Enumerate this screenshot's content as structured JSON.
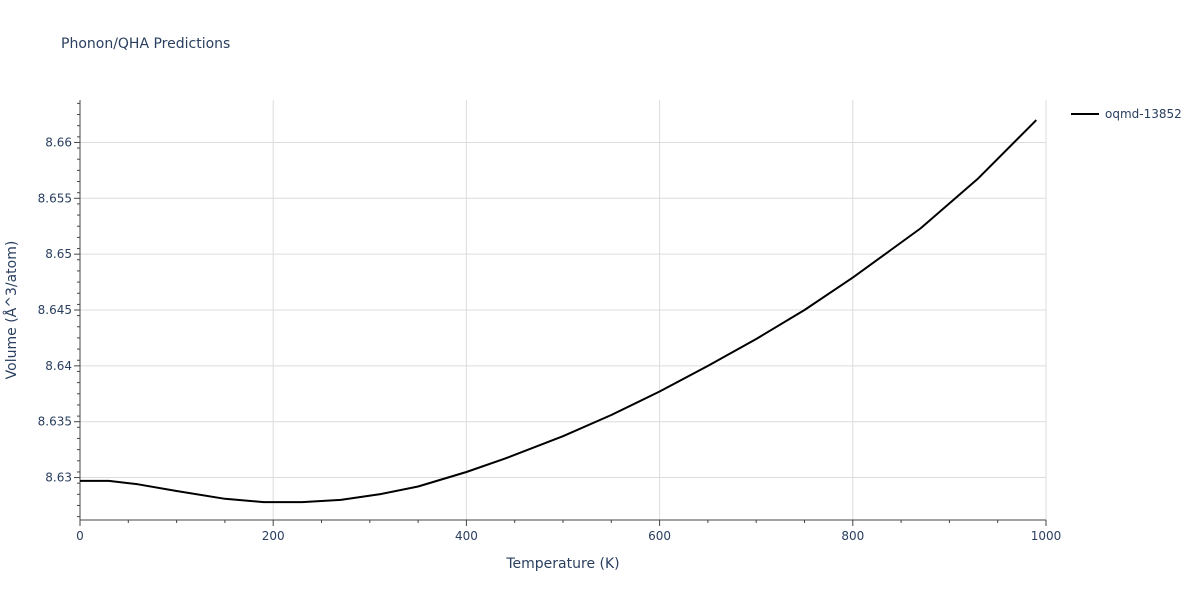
{
  "chart_data": {
    "type": "line",
    "title": "Phonon/QHA Predictions",
    "xlabel": "Temperature (K)",
    "ylabel": "Volume (Å^3/atom)",
    "xlim": [
      0,
      1000
    ],
    "ylim": [
      8.6262,
      8.6638
    ],
    "x_ticks": [
      0,
      200,
      400,
      600,
      800,
      1000
    ],
    "y_ticks": [
      8.63,
      8.635,
      8.64,
      8.645,
      8.65,
      8.655,
      8.66
    ],
    "grid": true,
    "legend_position": "top-right",
    "series": [
      {
        "name": "oqmd-13852",
        "color": "#000000",
        "x": [
          0,
          30,
          60,
          100,
          150,
          190,
          230,
          270,
          310,
          350,
          400,
          440,
          500,
          550,
          600,
          650,
          700,
          750,
          800,
          870,
          930,
          990
        ],
        "y": [
          8.6297,
          8.6297,
          8.6294,
          8.6288,
          8.6281,
          8.6278,
          8.6278,
          8.628,
          8.6285,
          8.6292,
          8.6305,
          8.6317,
          8.6337,
          8.6356,
          8.6377,
          8.64,
          8.6424,
          8.645,
          8.6479,
          8.6523,
          8.6568,
          8.662
        ]
      }
    ]
  }
}
